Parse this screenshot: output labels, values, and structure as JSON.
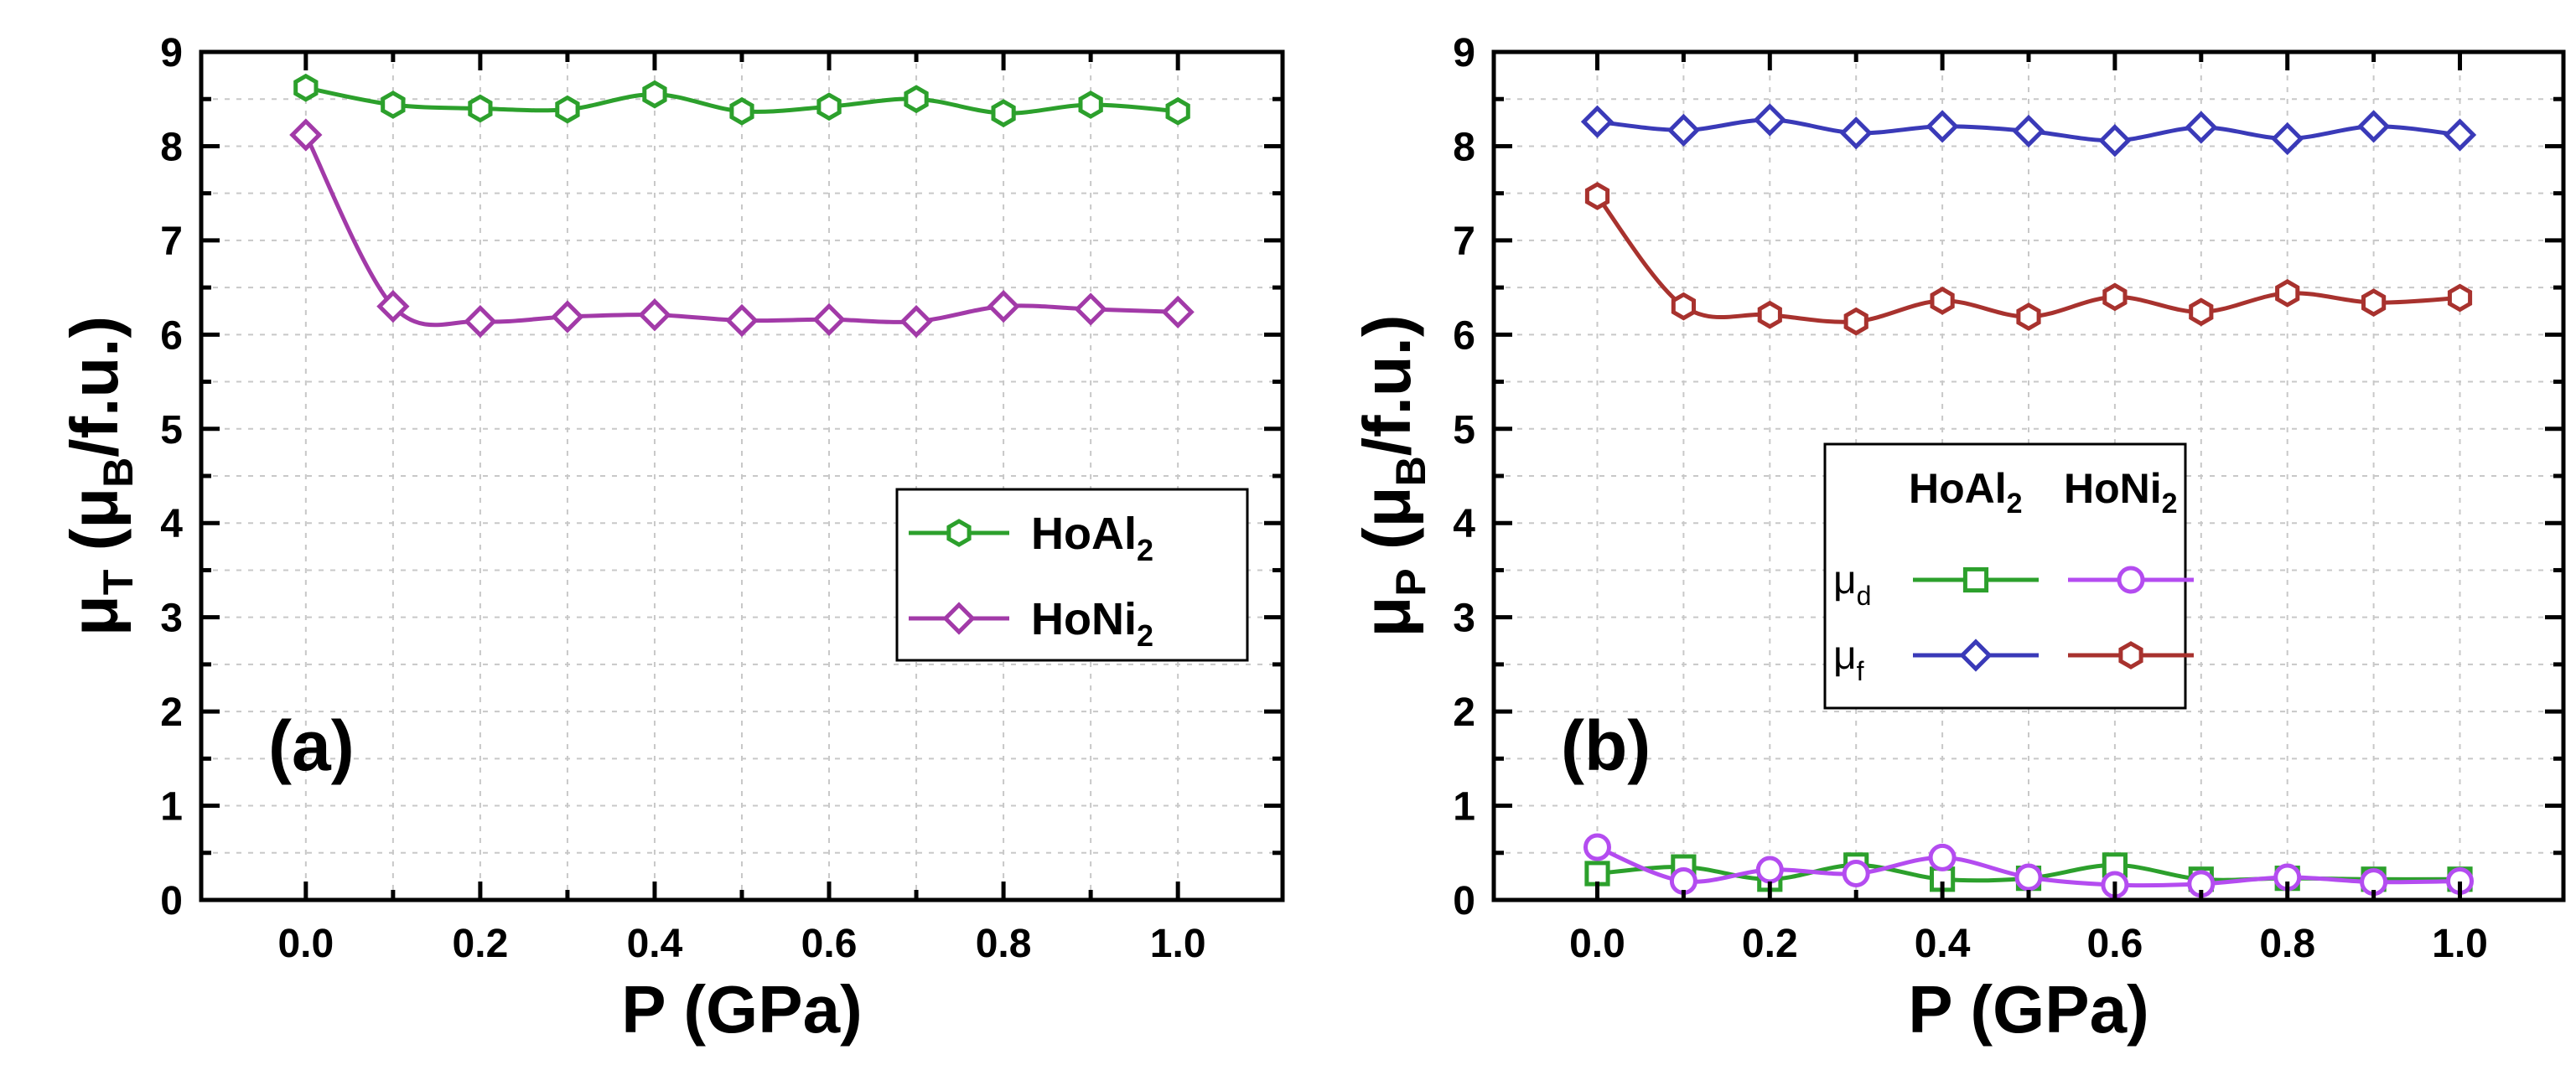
{
  "chart_data": [
    {
      "type": "line",
      "panel_label": "(a)",
      "xlabel": "P (GPa)",
      "ylabel": {
        "base": "μ",
        "sub": "T",
        "unit_open": " (μ",
        "unit_sub": "B",
        "unit_close": "/f.u.)"
      },
      "xlim": [
        -0.12,
        1.12
      ],
      "ylim": [
        0,
        9
      ],
      "xticks": [
        "0.0",
        "0.2",
        "0.4",
        "0.6",
        "0.8",
        "1.0"
      ],
      "xtick_values": [
        0,
        0.2,
        0.4,
        0.6,
        0.8,
        1.0
      ],
      "yticks": [
        "0",
        "1",
        "2",
        "3",
        "4",
        "5",
        "6",
        "7",
        "8",
        "9"
      ],
      "grid": true,
      "legend_position": "center-right",
      "x": [
        0.0,
        0.1,
        0.2,
        0.3,
        0.4,
        0.5,
        0.6,
        0.7,
        0.8,
        0.9,
        1.0
      ],
      "series": [
        {
          "name": "HoAl",
          "name_sub": "2",
          "color": "#2ca02c",
          "marker": "hexagon",
          "values": [
            8.62,
            8.44,
            8.4,
            8.39,
            8.55,
            8.37,
            8.42,
            8.5,
            8.35,
            8.44,
            8.37
          ]
        },
        {
          "name": "HoNi",
          "name_sub": "2",
          "color": "#a23aa8",
          "marker": "diamond",
          "values": [
            8.12,
            6.3,
            6.14,
            6.19,
            6.21,
            6.15,
            6.16,
            6.14,
            6.3,
            6.27,
            6.24
          ]
        }
      ]
    },
    {
      "type": "line",
      "panel_label": "(b)",
      "xlabel": "P (GPa)",
      "ylabel": {
        "base": "μ",
        "sub": "P",
        "unit_open": " (μ",
        "unit_sub": "B",
        "unit_close": "/f.u.)"
      },
      "xlim": [
        -0.12,
        1.12
      ],
      "ylim": [
        0,
        9
      ],
      "xticks": [
        "0.0",
        "0.2",
        "0.4",
        "0.6",
        "0.8",
        "1.0"
      ],
      "xtick_values": [
        0,
        0.2,
        0.4,
        0.6,
        0.8,
        1.0
      ],
      "yticks": [
        "0",
        "1",
        "2",
        "3",
        "4",
        "5",
        "6",
        "7",
        "8",
        "9"
      ],
      "grid": true,
      "legend_position": "center",
      "legend_columns": [
        {
          "base": "HoAl",
          "sub": "2"
        },
        {
          "base": "HoNi",
          "sub": "2"
        }
      ],
      "legend_rows": [
        {
          "base": "μ",
          "sub": "d"
        },
        {
          "base": "μ",
          "sub": "f"
        }
      ],
      "x": [
        0.0,
        0.1,
        0.2,
        0.3,
        0.4,
        0.5,
        0.6,
        0.7,
        0.8,
        0.9,
        1.0
      ],
      "series": [
        {
          "name": "HoAl2 μd",
          "color": "#2ca02c",
          "marker": "square",
          "values": [
            0.28,
            0.35,
            0.22,
            0.37,
            0.22,
            0.23,
            0.37,
            0.22,
            0.23,
            0.22,
            0.22
          ]
        },
        {
          "name": "HoNi2 μd",
          "color": "#b44cf0",
          "marker": "circle",
          "values": [
            0.56,
            0.2,
            0.32,
            0.28,
            0.45,
            0.24,
            0.16,
            0.17,
            0.24,
            0.19,
            0.2
          ]
        },
        {
          "name": "HoAl2 μf",
          "color": "#3a3ab8",
          "marker": "diamond",
          "values": [
            8.26,
            8.17,
            8.28,
            8.14,
            8.21,
            8.16,
            8.06,
            8.2,
            8.08,
            8.21,
            8.12
          ]
        },
        {
          "name": "HoNi2 μf",
          "color": "#a8322e",
          "marker": "hexagon",
          "values": [
            7.47,
            6.3,
            6.21,
            6.14,
            6.36,
            6.19,
            6.4,
            6.24,
            6.44,
            6.34,
            6.39
          ]
        }
      ]
    }
  ]
}
